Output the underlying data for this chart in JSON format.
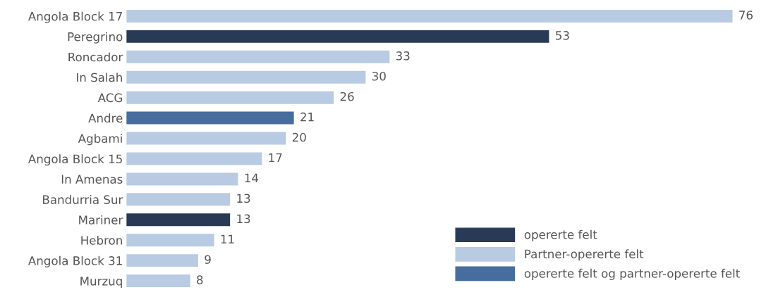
{
  "chart_data": {
    "type": "bar",
    "orientation": "horizontal",
    "data_labels": true,
    "legend": "bottom right",
    "grid": false,
    "categories": [
      "Angola Block 17",
      "Peregrino",
      "Roncador",
      "In Salah",
      "ACG",
      "Andre",
      "Agbami",
      "Angola Block 15",
      "In Amenas",
      "Bandurria Sur",
      "Mariner",
      "Hebron",
      "Angola Block 31",
      "Murzuq"
    ],
    "series": [
      {
        "name": "opererte felt",
        "color": "#293a56",
        "values": [
          null,
          53,
          null,
          null,
          null,
          null,
          null,
          null,
          null,
          null,
          13,
          null,
          null,
          null
        ]
      },
      {
        "name": "Partner-opererte felt",
        "color": "#b8cbe3",
        "values": [
          76,
          null,
          33,
          30,
          26,
          null,
          20,
          17,
          14,
          13,
          null,
          11,
          9,
          8
        ]
      },
      {
        "name": "opererte felt og partner-opererte felt",
        "color": "#466d9d",
        "values": [
          null,
          null,
          null,
          null,
          null,
          21,
          null,
          null,
          null,
          null,
          null,
          null,
          null,
          null
        ]
      }
    ]
  }
}
